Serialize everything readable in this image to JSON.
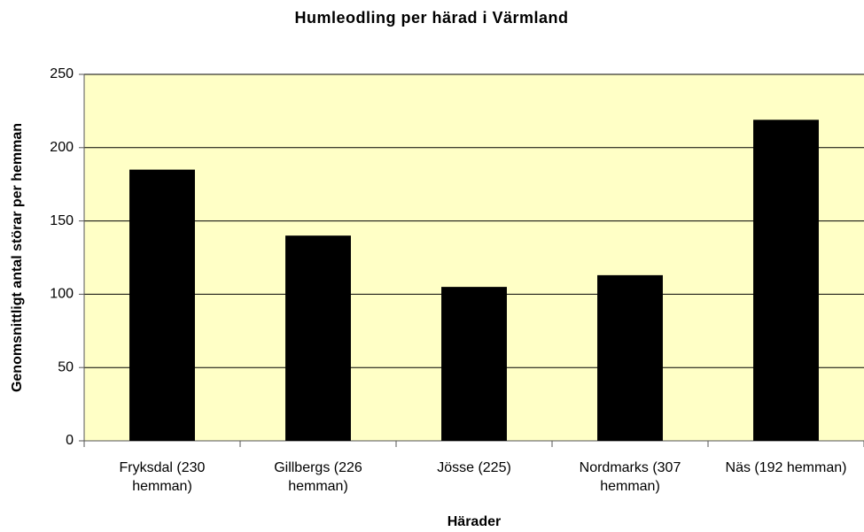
{
  "chart_data": {
    "type": "bar",
    "title": "Humleodling per härad i Värmland",
    "x_label": "Härader",
    "y_label": "Genomsnittligt antal störar per hemman",
    "categories": [
      "Fryksdal (230 hemman)",
      "Gillbergs (226 hemman)",
      "Jösse (225)",
      "Nordmarks (307 hemman)",
      "Näs (192 hemman)"
    ],
    "values": [
      185,
      140,
      105,
      113,
      219
    ],
    "color": "#000000",
    "plot_background": "#ffffc6",
    "ylim": [
      0,
      250
    ],
    "yticks": [
      0,
      50,
      100,
      150,
      200,
      250
    ],
    "grid": true
  }
}
